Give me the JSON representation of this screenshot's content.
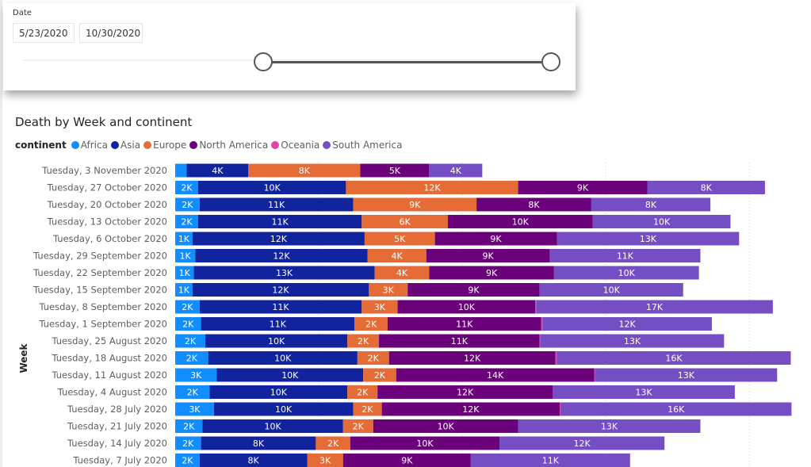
{
  "slicer": {
    "title": "Date",
    "start_date": "5/23/2020",
    "end_date": "10/30/2020"
  },
  "chart_data": {
    "type": "bar",
    "orientation": "horizontal",
    "stacked": true,
    "title": "Death by Week and continent",
    "xlabel": "",
    "ylabel": "Week",
    "legend_title": "continent",
    "legend_position": "top-left",
    "grid": "vertical dotted",
    "xlim": [
      0,
      44000
    ],
    "value_unit": "K",
    "categories": [
      "Tuesday, 3 November 2020",
      "Tuesday, 27 October 2020",
      "Tuesday, 20 October 2020",
      "Tuesday, 13 October 2020",
      "Tuesday, 6 October 2020",
      "Tuesday, 29 September 2020",
      "Tuesday, 22 September 2020",
      "Tuesday, 15 September 2020",
      "Tuesday, 8 September 2020",
      "Tuesday, 1 September 2020",
      "Tuesday, 25 August 2020",
      "Tuesday, 18 August 2020",
      "Tuesday, 11 August 2020",
      "Tuesday, 4 August 2020",
      "Tuesday, 28 July 2020",
      "Tuesday, 21 July 2020",
      "Tuesday, 14 July 2020",
      "Tuesday, 7 July 2020"
    ],
    "series": [
      {
        "name": "Africa",
        "color": "#118DFF",
        "values": [
          0.8,
          1.6,
          1.7,
          1.6,
          1.2,
          1.4,
          1.3,
          1.2,
          1.7,
          1.8,
          2.1,
          2.3,
          2.9,
          2.4,
          2.7,
          1.9,
          1.8,
          1.7
        ]
      },
      {
        "name": "Asia",
        "color": "#12239E",
        "values": [
          4.3,
          10.3,
          10.7,
          11.4,
          12.0,
          12.0,
          12.6,
          12.3,
          11.3,
          10.7,
          9.9,
          10.4,
          10.2,
          9.6,
          9.7,
          9.8,
          8.0,
          7.5
        ]
      },
      {
        "name": "Europe",
        "color": "#E66C37",
        "values": [
          7.8,
          12.0,
          8.6,
          6.0,
          4.9,
          4.1,
          3.8,
          2.7,
          2.5,
          2.3,
          2.2,
          2.2,
          2.3,
          2.1,
          2.0,
          2.1,
          2.4,
          2.5
        ]
      },
      {
        "name": "North America",
        "color": "#6B007B",
        "values": [
          4.8,
          9.0,
          8.0,
          10.1,
          8.5,
          8.6,
          8.7,
          9.2,
          9.6,
          10.7,
          11.2,
          11.6,
          13.8,
          12.2,
          12.4,
          10.1,
          10.4,
          8.9
        ]
      },
      {
        "name": "Oceania",
        "color": "#E044A7",
        "values": [
          0,
          0,
          0,
          0,
          0,
          0,
          0,
          0,
          0.05,
          0.1,
          0.05,
          0.1,
          0.05,
          0,
          0.05,
          0,
          0,
          0
        ]
      },
      {
        "name": "South America",
        "color": "#744EC2",
        "values": [
          3.7,
          8.2,
          8.3,
          9.6,
          12.7,
          10.5,
          10.1,
          10.0,
          16.5,
          11.8,
          12.8,
          16.3,
          12.7,
          12.7,
          16.1,
          12.7,
          11.5,
          11.1
        ]
      }
    ]
  }
}
